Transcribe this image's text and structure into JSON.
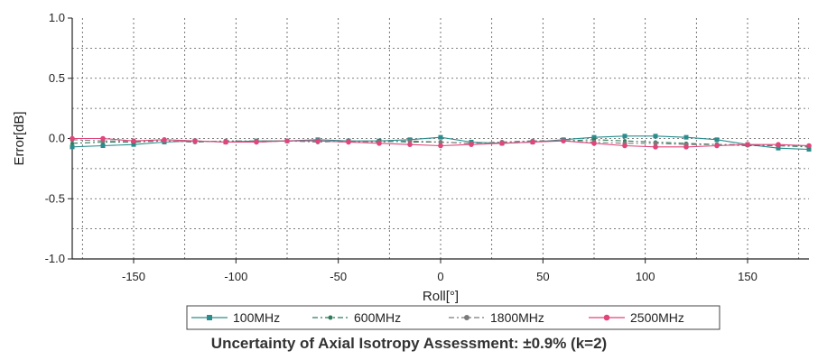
{
  "caption": "Uncertainty of Axial Isotropy Assessment: ±0.9% (k=2)",
  "colors": {
    "100MHz": "#2a8c8c",
    "600MHz": "#2f7a5a",
    "1800MHz": "#7a7a7a",
    "2500MHz": "#e0457b"
  },
  "chart_data": {
    "type": "line",
    "xlabel": "Roll[°]",
    "ylabel": "Error[dB]",
    "xlim": [
      -180,
      180
    ],
    "ylim": [
      -1.0,
      1.0
    ],
    "xticks": [
      -150,
      -100,
      -50,
      0,
      50,
      100,
      150
    ],
    "yticks": [
      1.0,
      0.5,
      0.0,
      -0.5,
      -1.0
    ],
    "ytick_labels": [
      "1.0",
      "0.5",
      "0.0",
      "-0.5",
      "-1.0"
    ],
    "grid": true,
    "legend_position": "bottom",
    "x": [
      -180,
      -165,
      -150,
      -135,
      -120,
      -105,
      -90,
      -75,
      -60,
      -45,
      -30,
      -15,
      0,
      15,
      30,
      45,
      60,
      75,
      90,
      105,
      120,
      135,
      150,
      165,
      180
    ],
    "series": [
      {
        "name": "100MHz",
        "values": [
          -0.07,
          -0.06,
          -0.05,
          -0.03,
          -0.02,
          -0.03,
          -0.02,
          -0.02,
          -0.01,
          -0.02,
          -0.02,
          -0.01,
          0.01,
          -0.03,
          -0.04,
          -0.03,
          -0.01,
          0.01,
          0.02,
          0.02,
          0.01,
          -0.01,
          -0.05,
          -0.08,
          -0.09
        ]
      },
      {
        "name": "600MHz",
        "values": [
          -0.04,
          -0.03,
          -0.03,
          -0.02,
          -0.03,
          -0.02,
          -0.03,
          -0.02,
          -0.02,
          -0.03,
          -0.02,
          -0.03,
          -0.03,
          -0.04,
          -0.03,
          -0.02,
          -0.02,
          -0.01,
          -0.02,
          -0.03,
          -0.04,
          -0.05,
          -0.06,
          -0.06,
          -0.07
        ]
      },
      {
        "name": "1800MHz",
        "values": [
          -0.01,
          -0.02,
          -0.02,
          -0.02,
          -0.03,
          -0.02,
          -0.02,
          -0.02,
          -0.03,
          -0.02,
          -0.03,
          -0.02,
          -0.03,
          -0.04,
          -0.03,
          -0.02,
          -0.02,
          -0.03,
          -0.04,
          -0.04,
          -0.05,
          -0.05,
          -0.05,
          -0.06,
          -0.06
        ]
      },
      {
        "name": "2500MHz",
        "values": [
          0.0,
          0.0,
          -0.02,
          -0.01,
          -0.02,
          -0.03,
          -0.03,
          -0.02,
          -0.02,
          -0.03,
          -0.04,
          -0.05,
          -0.06,
          -0.05,
          -0.04,
          -0.03,
          -0.02,
          -0.04,
          -0.06,
          -0.07,
          -0.07,
          -0.06,
          -0.05,
          -0.05,
          -0.06
        ]
      }
    ]
  }
}
